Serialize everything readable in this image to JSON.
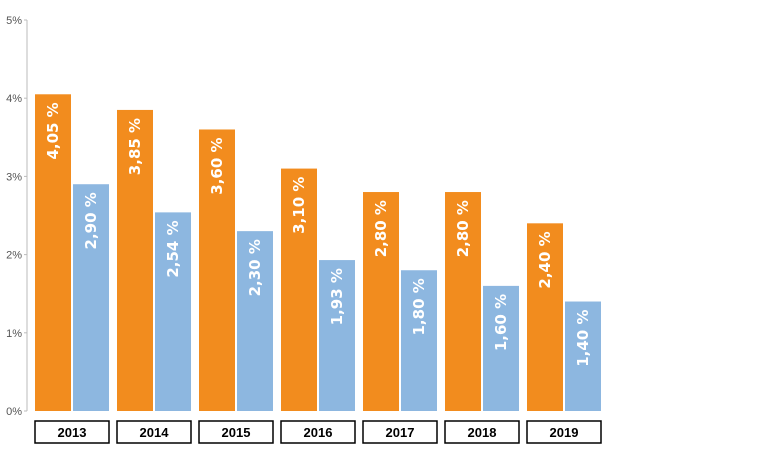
{
  "chart_data": {
    "type": "bar",
    "categories": [
      "2013",
      "2014",
      "2015",
      "2016",
      "2017",
      "2018",
      "2019"
    ],
    "series": [
      {
        "values": [
          4.05,
          3.85,
          3.6,
          3.1,
          2.8,
          2.8,
          2.4
        ],
        "labels": [
          "4,05 %",
          "3,85 %",
          "3,60 %",
          "3,10 %",
          "2,80 %",
          "2,80 %",
          "2,40 %"
        ],
        "color": "#F28C1E"
      },
      {
        "values": [
          2.9,
          2.54,
          2.3,
          1.93,
          1.8,
          1.6,
          1.4
        ],
        "labels": [
          "2,90 %",
          "2,54 %",
          "2,30 %",
          "1,93 %",
          "1,80 %",
          "1,60 %",
          "1,40 %"
        ],
        "color": "#8DB7E0"
      }
    ],
    "y_ticks": [
      {
        "value": 0,
        "label": "0%"
      },
      {
        "value": 1,
        "label": "1%"
      },
      {
        "value": 2,
        "label": "2%"
      },
      {
        "value": 3,
        "label": "3%"
      },
      {
        "value": 4,
        "label": "4%"
      },
      {
        "value": 5,
        "label": "5%"
      }
    ],
    "ylim": [
      0,
      5
    ],
    "grid": false,
    "legend": "none"
  }
}
